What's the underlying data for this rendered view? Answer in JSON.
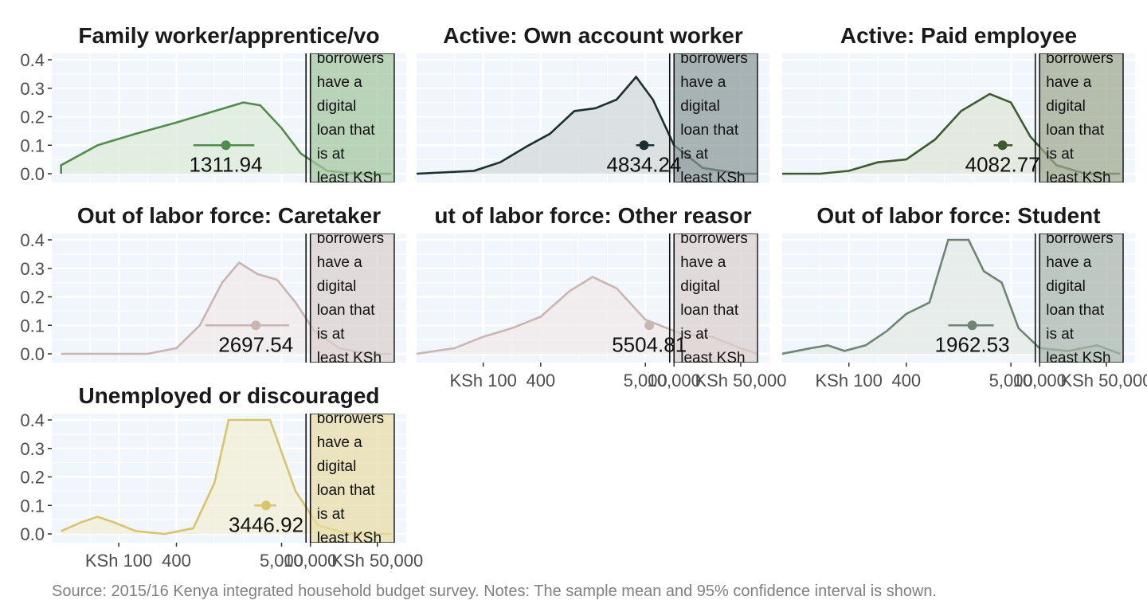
{
  "caption": "Source: 2015/16 Kenya integrated household budget survey. Notes: The sample mean and 95% confidence interval is shown.",
  "chart_data": {
    "type": "area",
    "x_scale": "log",
    "x_range_ksh": [
      20,
      100000
    ],
    "ylim": [
      0,
      0.4
    ],
    "y_ticks": [
      0.0,
      0.1,
      0.2,
      0.3,
      0.4
    ],
    "y_tick_labels": [
      "0.0",
      "0.1",
      "0.2",
      "0.3",
      "0.4"
    ],
    "x_ticks": [
      100,
      400,
      5000,
      10000,
      50000
    ],
    "x_tick_labels": [
      "KSh 100",
      "400",
      "5,000",
      "10,000",
      "KSh 50,000"
    ],
    "threshold_lines_ksh": [
      9000,
      10000
    ],
    "shaded_region_ksh": [
      10000,
      75000
    ],
    "annotation_lines": [
      "borrowers",
      "have a",
      "digital",
      "loan that",
      "is at",
      "least KSh"
    ],
    "panels": [
      {
        "title": "Family worker/apprentice/vo",
        "color": "#548b4f",
        "fill": "#dcebd8",
        "band": "#a3c6a0",
        "mean": 1311.94,
        "mean_label": "1311.94",
        "ci": [
          600,
          2600
        ],
        "density": [
          [
            25,
            0.0
          ],
          [
            25,
            0.03
          ],
          [
            60,
            0.1
          ],
          [
            150,
            0.14
          ],
          [
            400,
            0.18
          ],
          [
            1000,
            0.22
          ],
          [
            2000,
            0.25
          ],
          [
            3000,
            0.24
          ],
          [
            5000,
            0.16
          ],
          [
            8000,
            0.07
          ],
          [
            15000,
            0.01
          ],
          [
            30000,
            0.0
          ],
          [
            70000,
            0.0
          ]
        ]
      },
      {
        "title": "Active: Own account worker",
        "color": "#1c3032",
        "fill": "#d3dadb",
        "band": "#8a9899",
        "mean": 4834.24,
        "mean_label": "4834.24",
        "ci": [
          4000,
          6200
        ],
        "density": [
          [
            20,
            0.0
          ],
          [
            80,
            0.01
          ],
          [
            150,
            0.04
          ],
          [
            300,
            0.1
          ],
          [
            500,
            0.14
          ],
          [
            900,
            0.22
          ],
          [
            1500,
            0.23
          ],
          [
            2500,
            0.26
          ],
          [
            4000,
            0.34
          ],
          [
            6000,
            0.26
          ],
          [
            10000,
            0.1
          ],
          [
            20000,
            0.02
          ],
          [
            50000,
            0.0
          ],
          [
            75000,
            0.0
          ]
        ]
      },
      {
        "title": "Active: Paid employee",
        "color": "#3f5a31",
        "fill": "#dfe5d9",
        "band": "#9ea88f",
        "mean": 4082.77,
        "mean_label": "4082.77",
        "ci": [
          3300,
          5200
        ],
        "density": [
          [
            20,
            0.0
          ],
          [
            50,
            0.0
          ],
          [
            100,
            0.01
          ],
          [
            200,
            0.04
          ],
          [
            400,
            0.05
          ],
          [
            800,
            0.12
          ],
          [
            1500,
            0.22
          ],
          [
            3000,
            0.28
          ],
          [
            5000,
            0.25
          ],
          [
            8000,
            0.13
          ],
          [
            15000,
            0.03
          ],
          [
            30000,
            0.0
          ],
          [
            70000,
            0.0
          ]
        ]
      },
      {
        "title": "Out of labor force: Caretaker",
        "color": "#c9b5b2",
        "fill": "#f0eaea",
        "band": "#dbd0cf",
        "mean": 2697.54,
        "mean_label": "2697.54",
        "ci": [
          800,
          6000
        ],
        "density": [
          [
            25,
            0.0
          ],
          [
            200,
            0.0
          ],
          [
            400,
            0.02
          ],
          [
            700,
            0.1
          ],
          [
            1200,
            0.25
          ],
          [
            1800,
            0.32
          ],
          [
            2800,
            0.28
          ],
          [
            4500,
            0.26
          ],
          [
            7000,
            0.18
          ],
          [
            11000,
            0.08
          ],
          [
            20000,
            0.02
          ],
          [
            40000,
            0.0
          ],
          [
            70000,
            0.0
          ]
        ]
      },
      {
        "title": "ut of labor force: Other reasor",
        "color": "#c9b5b2",
        "fill": "#f0eaea",
        "band": "#dbd0cf",
        "mean": 5504.81,
        "mean_label": "5504.81",
        "ci": [
          5200,
          5900
        ],
        "density": [
          [
            20,
            0.0
          ],
          [
            50,
            0.02
          ],
          [
            100,
            0.06
          ],
          [
            200,
            0.09
          ],
          [
            400,
            0.13
          ],
          [
            800,
            0.22
          ],
          [
            1400,
            0.27
          ],
          [
            2500,
            0.23
          ],
          [
            5000,
            0.12
          ],
          [
            12000,
            0.07
          ],
          [
            25000,
            0.06
          ],
          [
            50000,
            0.02
          ],
          [
            75000,
            0.0
          ]
        ]
      },
      {
        "title": "Out of labor force: Student",
        "color": "#6e8573",
        "fill": "#e3e9e4",
        "band": "#a9b7ac",
        "mean": 1962.53,
        "mean_label": "1962.53",
        "ci": [
          1100,
          3300
        ],
        "density": [
          [
            20,
            0.0
          ],
          [
            40,
            0.02
          ],
          [
            60,
            0.03
          ],
          [
            90,
            0.01
          ],
          [
            150,
            0.03
          ],
          [
            250,
            0.08
          ],
          [
            400,
            0.14
          ],
          [
            700,
            0.18
          ],
          [
            1100,
            0.4
          ],
          [
            1800,
            0.4
          ],
          [
            2600,
            0.29
          ],
          [
            4000,
            0.25
          ],
          [
            6000,
            0.09
          ],
          [
            10000,
            0.02
          ],
          [
            20000,
            0.01
          ],
          [
            40000,
            0.03
          ],
          [
            70000,
            0.0
          ]
        ]
      },
      {
        "title": "Unemployed or discouraged",
        "color": "#d8c46a",
        "fill": "#f1eed5",
        "band": "#e8dca6",
        "mean": 3446.92,
        "mean_label": "3446.92",
        "ci": [
          2600,
          4400
        ],
        "density": [
          [
            25,
            0.01
          ],
          [
            40,
            0.04
          ],
          [
            60,
            0.06
          ],
          [
            90,
            0.04
          ],
          [
            150,
            0.01
          ],
          [
            300,
            0.0
          ],
          [
            600,
            0.02
          ],
          [
            1000,
            0.18
          ],
          [
            1400,
            0.4
          ],
          [
            3800,
            0.4
          ],
          [
            7000,
            0.15
          ],
          [
            12000,
            0.03
          ],
          [
            25000,
            0.0
          ],
          [
            70000,
            0.0
          ]
        ]
      }
    ]
  }
}
